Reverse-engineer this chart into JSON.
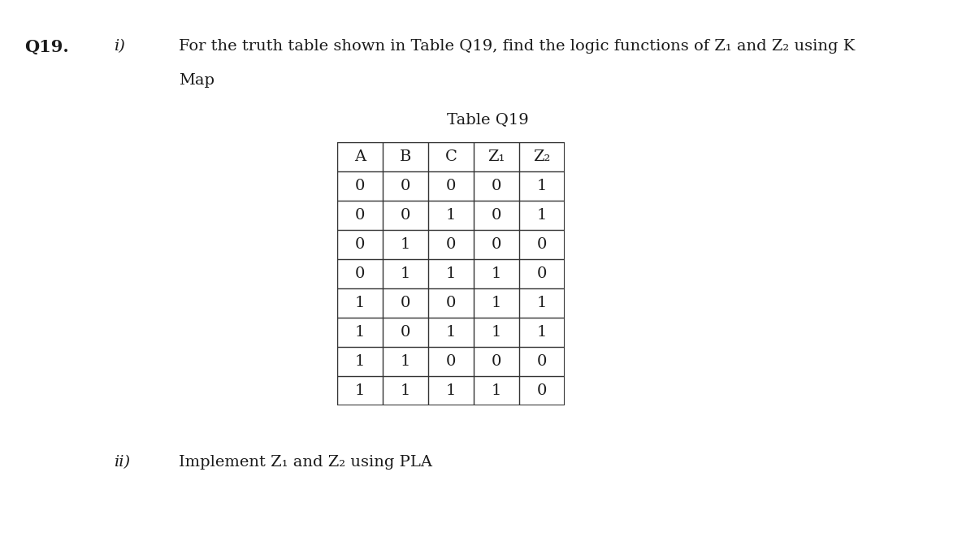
{
  "title_label": "Table Q19",
  "q_label": "Q19.",
  "part_i_label": "i)",
  "part_i_line1": "For the truth table shown in Table Q19, find the logic functions of Z₁ and Z₂ using K",
  "part_i_line2": "Map",
  "part_ii_label": "ii)",
  "part_ii_text": "Implement Z₁ and Z₂ using PLA",
  "table_headers": [
    "A",
    "B",
    "C",
    "Z₁",
    "Z₂"
  ],
  "table_data": [
    [
      0,
      0,
      0,
      0,
      1
    ],
    [
      0,
      0,
      1,
      0,
      1
    ],
    [
      0,
      1,
      0,
      0,
      0
    ],
    [
      0,
      1,
      1,
      1,
      0
    ],
    [
      1,
      0,
      0,
      1,
      1
    ],
    [
      1,
      0,
      1,
      1,
      1
    ],
    [
      1,
      1,
      0,
      0,
      0
    ],
    [
      1,
      1,
      1,
      1,
      0
    ]
  ],
  "bg_color": "#ffffff",
  "text_color": "#1a1a1a",
  "font_size_body": 14,
  "font_size_table": 14,
  "font_size_q": 15
}
